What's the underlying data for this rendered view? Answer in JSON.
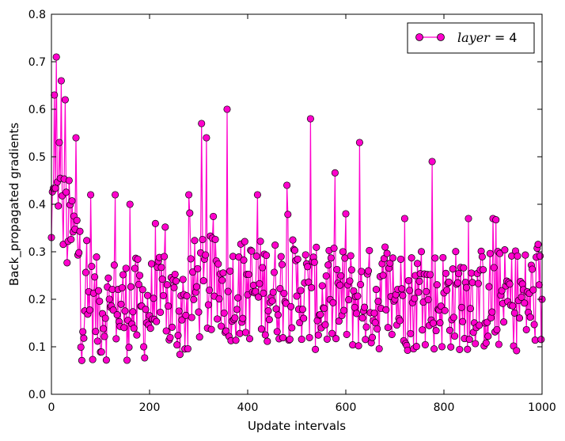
{
  "chart_data": {
    "type": "line",
    "title": "",
    "xlabel": "Update intervals",
    "ylabel": "Back_propagated gradients",
    "xlim": [
      0,
      1000
    ],
    "ylim": [
      0.0,
      0.8
    ],
    "xticks": [
      "0",
      "200",
      "400",
      "600",
      "800",
      "1000"
    ],
    "yticks": [
      "0.0",
      "0.1",
      "0.2",
      "0.3",
      "0.4",
      "0.5",
      "0.6",
      "0.7",
      "0.8"
    ],
    "grid": false,
    "legend_position": "top-right",
    "series": [
      {
        "name": "layer = 4",
        "legend_var": "layer",
        "legend_eq": "= 4",
        "color": "#ff00cc",
        "marker": "circle",
        "x_step": 2,
        "sample_points_x": [
          0,
          6,
          10,
          16,
          20,
          28,
          50,
          80,
          130,
          160,
          230,
          280,
          306,
          316,
          358,
          420,
          480,
          528,
          600,
          628,
          680,
          720,
          776,
          850,
          900,
          1000
        ],
        "sample_points_y": [
          0.33,
          0.63,
          0.71,
          0.53,
          0.66,
          0.62,
          0.54,
          0.42,
          0.42,
          0.4,
          0.29,
          0.42,
          0.57,
          0.54,
          0.6,
          0.42,
          0.44,
          0.58,
          0.38,
          0.53,
          0.31,
          0.37,
          0.49,
          0.37,
          0.37,
          0.2
        ]
      }
    ]
  }
}
